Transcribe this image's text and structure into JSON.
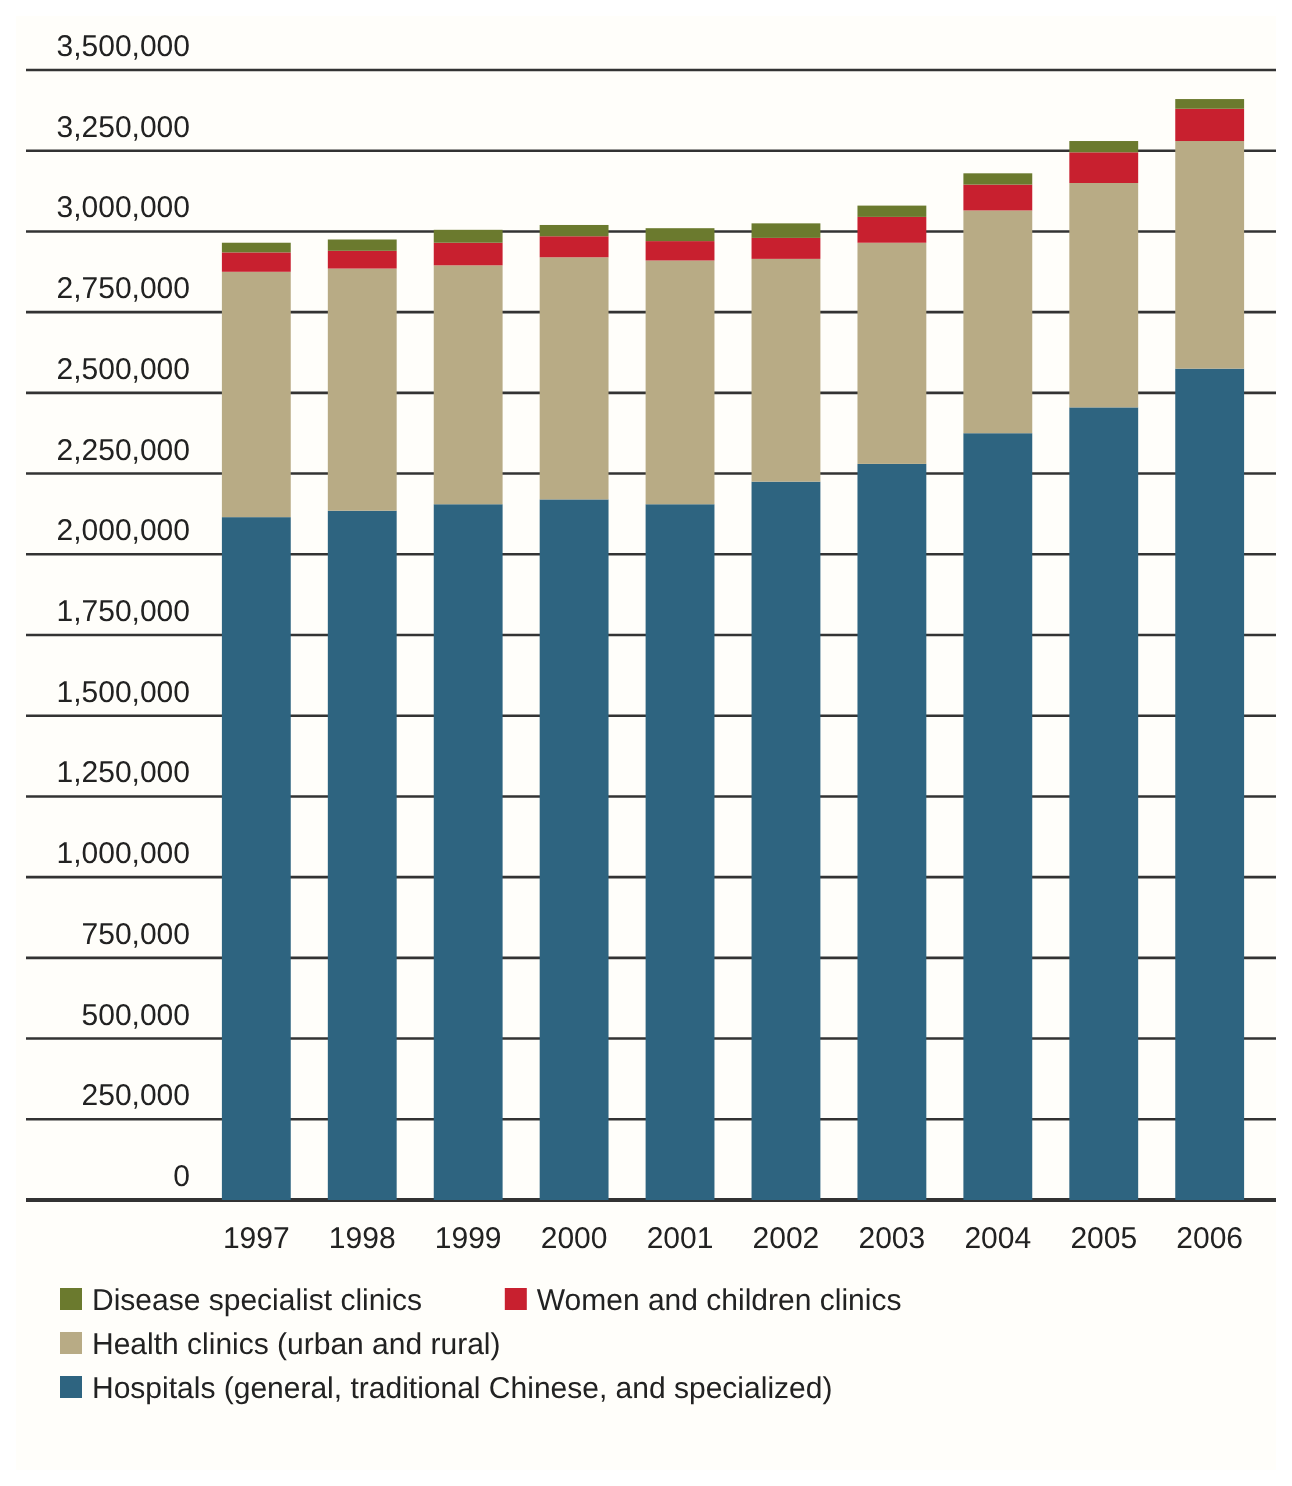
{
  "chart_data": {
    "type": "bar",
    "stacked": true,
    "categories": [
      "1997",
      "1998",
      "1999",
      "2000",
      "2001",
      "2002",
      "2003",
      "2004",
      "2005",
      "2006"
    ],
    "series": [
      {
        "name": "Hospitals (general, traditional Chinese, and specialized)",
        "color": "#2e6480",
        "values": [
          2115000,
          2135000,
          2155000,
          2170000,
          2155000,
          2225000,
          2280000,
          2375000,
          2455000,
          2575000
        ]
      },
      {
        "name": "Health clinics (urban and rural)",
        "color": "#b8ab85",
        "values": [
          760000,
          750000,
          740000,
          750000,
          755000,
          690000,
          685000,
          690000,
          695000,
          705000
        ]
      },
      {
        "name": "Women and children clinics",
        "color": "#c8202f",
        "values": [
          60000,
          55000,
          70000,
          65000,
          60000,
          65000,
          80000,
          80000,
          95000,
          100000
        ]
      },
      {
        "name": "Disease specialist clinics",
        "color": "#6b7a2e",
        "values": [
          30000,
          35000,
          40000,
          35000,
          40000,
          45000,
          35000,
          35000,
          35000,
          30000
        ]
      }
    ],
    "ylim": [
      0,
      3500000
    ],
    "yticks": [
      0,
      {
        "value": 250000,
        "label": "250,000"
      },
      {
        "value": 500000,
        "label": "500,000"
      },
      {
        "value": 750000,
        "label": "750,000"
      },
      {
        "value": 1000000,
        "label": "1,000,000"
      },
      {
        "value": 1250000,
        "label": "1,250,000"
      },
      {
        "value": 1500000,
        "label": "1,500,000"
      },
      {
        "value": 1750000,
        "label": "1,750,000"
      },
      {
        "value": 2000000,
        "label": "2,000,000"
      },
      {
        "value": 2250000,
        "label": "2,250,000"
      },
      {
        "value": 2500000,
        "label": "2,500,000"
      },
      {
        "value": 2750000,
        "label": "2,750,000"
      },
      {
        "value": 3000000,
        "label": "3,000,000"
      },
      {
        "value": 3250000,
        "label": "3,250,000"
      },
      {
        "value": 3500000,
        "label": "3,500,000"
      }
    ],
    "grid": "y",
    "legend": "bottom"
  }
}
